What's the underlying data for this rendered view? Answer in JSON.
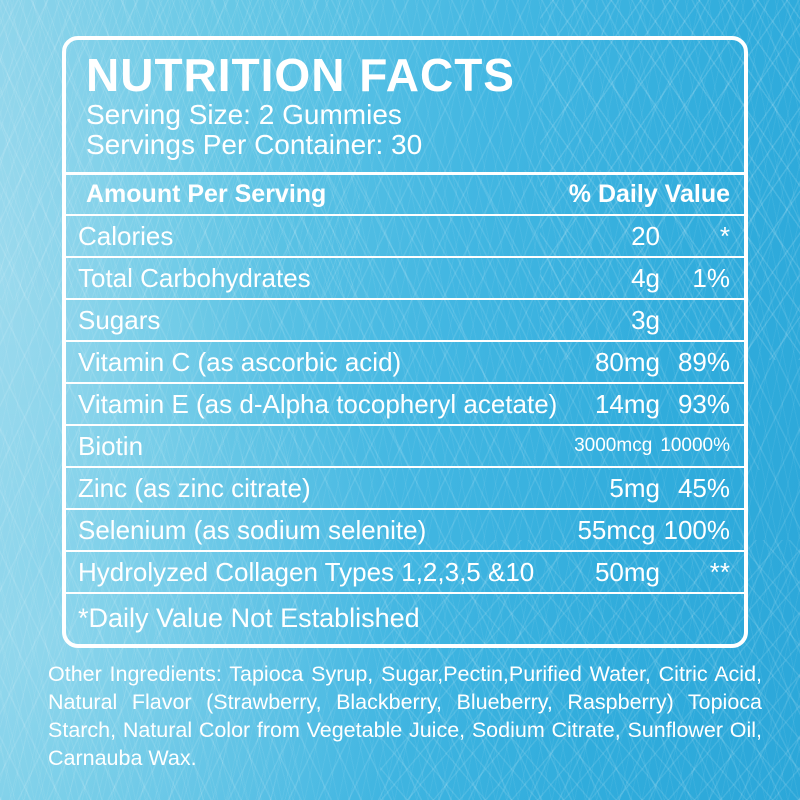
{
  "label": {
    "title": "NUTRITION FACTS",
    "serving_size": "Serving Size: 2 Gummies",
    "servings_per_container": "Servings Per Container: 30",
    "columns": {
      "amount_header": "Amount Per Serving",
      "daily_value_header": "% Daily Value"
    },
    "rows": [
      {
        "name": "Calories",
        "amount": "20",
        "dv": "*"
      },
      {
        "name": "Total Carbohydrates",
        "amount": "4g",
        "dv": "1%"
      },
      {
        "name": "Sugars",
        "amount": "3g",
        "dv": ""
      },
      {
        "name": "Vitamin C (as ascorbic acid)",
        "amount": "80mg",
        "dv": "89%"
      },
      {
        "name": "Vitamin E (as d-Alpha tocopheryl acetate)",
        "amount": "14mg",
        "dv": "93%"
      },
      {
        "name": "Biotin",
        "amount": "3000mcg",
        "dv": "10000%"
      },
      {
        "name": "Zinc (as zinc citrate)",
        "amount": "5mg",
        "dv": "45%"
      },
      {
        "name": "Selenium (as sodium selenite)",
        "amount": "55mcg",
        "dv": "100%"
      },
      {
        "name": "Hydrolyzed Collagen Types 1,2,3,5 &10",
        "amount": "50mg",
        "dv": "**"
      }
    ],
    "footnote": "*Daily Value Not Established"
  },
  "other_ingredients": "Other Ingredients: Tapioca Syrup, Sugar,Pectin,Purified Water, Citric Acid, Natural Flavor (Strawberry, Blackberry, Blueberry, Raspberry) Topioca Starch, Natural Color from Vegetable Juice, Sodium Citrate, Sunflower Oil, Carnauba Wax.",
  "colors": {
    "background_light": "#8fd5eb",
    "background_deep": "#2ca7d9",
    "panel_border": "#ffffff",
    "text": "#ffffff"
  }
}
